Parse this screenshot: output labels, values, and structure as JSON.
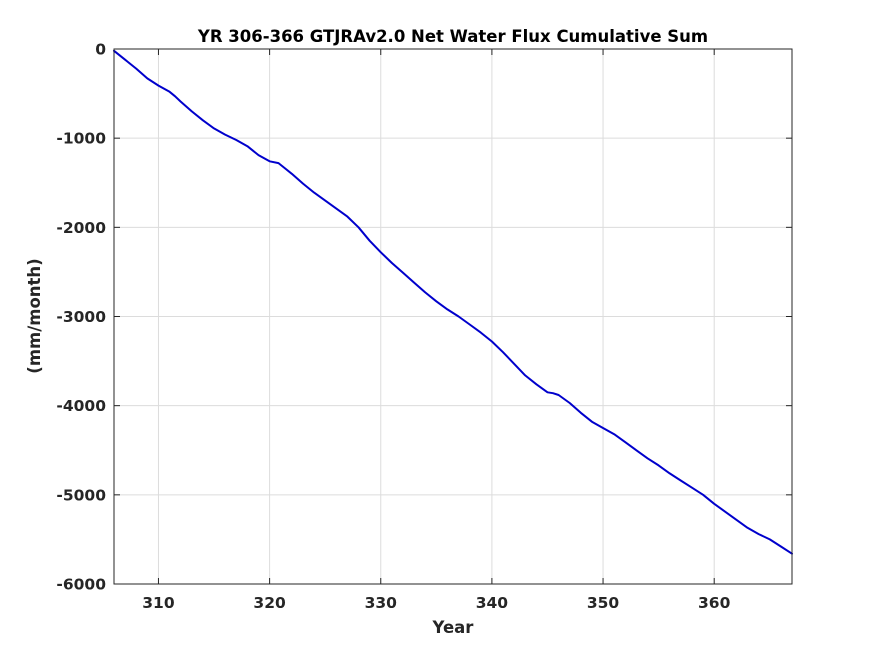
{
  "chart_data": {
    "type": "line",
    "title": "YR 306-366 GTJRAv2.0 Net Water Flux Cumulative Sum",
    "xlabel": "Year",
    "ylabel": "(mm/month)",
    "xlim": [
      306,
      367
    ],
    "ylim": [
      -6000,
      0
    ],
    "xticks": [
      310,
      320,
      330,
      340,
      350,
      360
    ],
    "yticks": [
      0,
      -1000,
      -2000,
      -3000,
      -4000,
      -5000,
      -6000
    ],
    "xtick_labels": [
      "310",
      "320",
      "330",
      "340",
      "350",
      "360"
    ],
    "ytick_labels": [
      "0",
      "-1000",
      "-2000",
      "-3000",
      "-4000",
      "-5000",
      "-6000"
    ],
    "grid": true,
    "line_color": "#0000cc",
    "series": [
      {
        "x": [
          306.0,
          307.0,
          308.0,
          309.0,
          310.0,
          311.0,
          311.5,
          312.0,
          313.0,
          314.0,
          315.0,
          316.0,
          317.0,
          318.0,
          319.0,
          320.0,
          320.8,
          321.5,
          322.0,
          323.0,
          324.0,
          325.0,
          326.0,
          327.0,
          328.0,
          329.0,
          330.0,
          331.0,
          332.0,
          333.0,
          334.0,
          335.0,
          336.0,
          337.0,
          338.0,
          339.0,
          340.0,
          341.0,
          342.0,
          343.0,
          344.0,
          345.0,
          345.5,
          346.0,
          347.0,
          348.0,
          349.0,
          350.0,
          351.0,
          352.0,
          353.0,
          354.0,
          355.0,
          356.0,
          357.0,
          358.0,
          359.0,
          360.0,
          361.0,
          362.0,
          363.0,
          364.0,
          365.0,
          366.0,
          367.0
        ],
        "values": [
          -20,
          -120,
          -220,
          -330,
          -410,
          -480,
          -530,
          -590,
          -700,
          -800,
          -890,
          -960,
          -1020,
          -1090,
          -1190,
          -1260,
          -1280,
          -1350,
          -1400,
          -1510,
          -1610,
          -1700,
          -1790,
          -1880,
          -2000,
          -2150,
          -2280,
          -2400,
          -2510,
          -2620,
          -2730,
          -2830,
          -2920,
          -3000,
          -3090,
          -3180,
          -3280,
          -3400,
          -3530,
          -3660,
          -3760,
          -3850,
          -3860,
          -3880,
          -3970,
          -4080,
          -4180,
          -4250,
          -4320,
          -4410,
          -4500,
          -4590,
          -4670,
          -4760,
          -4840,
          -4920,
          -5000,
          -5100,
          -5190,
          -5280,
          -5370,
          -5440,
          -5500,
          -5580,
          -5660
        ]
      }
    ]
  }
}
